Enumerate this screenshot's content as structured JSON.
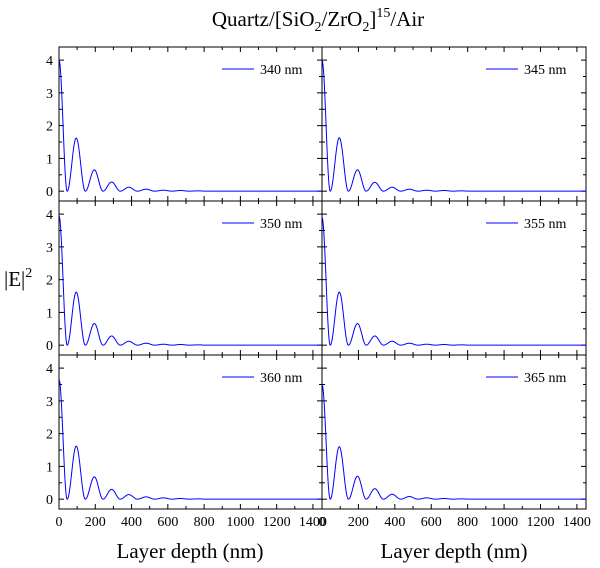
{
  "figure": {
    "title_main": "Quartz/[SiO",
    "title_sub1": "2",
    "title_mid": "/ZrO",
    "title_sub2": "2",
    "title_close": "]",
    "title_sup": "15",
    "title_end": "/Air",
    "ylabel_main": "|E|",
    "ylabel_sup": "2",
    "xlabel_left": "Layer depth (nm)",
    "xlabel_right": "Layer depth (nm)",
    "series_color": "#0000ff"
  },
  "chart_data": [
    {
      "type": "line",
      "panel": "top-left",
      "legend": "340 nm",
      "xlim": [
        0,
        1450
      ],
      "ylim": [
        -0.3,
        4.4
      ],
      "xticks": [
        0,
        200,
        400,
        600,
        800,
        1000,
        1200,
        1400
      ],
      "yticks": [
        0,
        1,
        2,
        3,
        4
      ],
      "first_peak": 4.0,
      "peaks": [
        {
          "x": 95,
          "y": 1.62
        },
        {
          "x": 195,
          "y": 0.65
        },
        {
          "x": 290,
          "y": 0.28
        },
        {
          "x": 385,
          "y": 0.12
        },
        {
          "x": 480,
          "y": 0.06
        },
        {
          "x": 575,
          "y": 0.03
        },
        {
          "x": 670,
          "y": 0.02
        },
        {
          "x": 765,
          "y": 0.01
        }
      ]
    },
    {
      "type": "line",
      "panel": "top-right",
      "legend": "345 nm",
      "xlim": [
        0,
        1450
      ],
      "ylim": [
        -0.3,
        4.4
      ],
      "xticks": [
        0,
        200,
        400,
        600,
        800,
        1000,
        1200,
        1400
      ],
      "yticks": [
        0,
        1,
        2,
        3,
        4
      ],
      "first_peak": 4.0,
      "peaks": [
        {
          "x": 95,
          "y": 1.63
        },
        {
          "x": 195,
          "y": 0.65
        },
        {
          "x": 290,
          "y": 0.27
        },
        {
          "x": 385,
          "y": 0.12
        },
        {
          "x": 480,
          "y": 0.06
        },
        {
          "x": 575,
          "y": 0.03
        },
        {
          "x": 670,
          "y": 0.02
        },
        {
          "x": 765,
          "y": 0.01
        }
      ]
    },
    {
      "type": "line",
      "panel": "middle-left",
      "legend": "350 nm",
      "xlim": [
        0,
        1450
      ],
      "ylim": [
        -0.3,
        4.4
      ],
      "xticks": [
        0,
        200,
        400,
        600,
        800,
        1000,
        1200,
        1400
      ],
      "yticks": [
        0,
        1,
        2,
        3,
        4
      ],
      "first_peak": 3.95,
      "peaks": [
        {
          "x": 95,
          "y": 1.62
        },
        {
          "x": 195,
          "y": 0.66
        },
        {
          "x": 290,
          "y": 0.28
        },
        {
          "x": 385,
          "y": 0.12
        },
        {
          "x": 480,
          "y": 0.06
        },
        {
          "x": 575,
          "y": 0.03
        },
        {
          "x": 670,
          "y": 0.02
        },
        {
          "x": 765,
          "y": 0.01
        }
      ]
    },
    {
      "type": "line",
      "panel": "middle-right",
      "legend": "355 nm",
      "xlim": [
        0,
        1450
      ],
      "ylim": [
        -0.3,
        4.4
      ],
      "xticks": [
        0,
        200,
        400,
        600,
        800,
        1000,
        1200,
        1400
      ],
      "yticks": [
        0,
        1,
        2,
        3,
        4
      ],
      "first_peak": 3.9,
      "peaks": [
        {
          "x": 95,
          "y": 1.62
        },
        {
          "x": 195,
          "y": 0.66
        },
        {
          "x": 290,
          "y": 0.28
        },
        {
          "x": 385,
          "y": 0.12
        },
        {
          "x": 480,
          "y": 0.06
        },
        {
          "x": 575,
          "y": 0.03
        },
        {
          "x": 670,
          "y": 0.02
        },
        {
          "x": 765,
          "y": 0.01
        }
      ]
    },
    {
      "type": "line",
      "panel": "bottom-left",
      "legend": "360 nm",
      "xlim": [
        0,
        1450
      ],
      "ylim": [
        -0.3,
        4.4
      ],
      "xticks": [
        0,
        200,
        400,
        600,
        800,
        1000,
        1200,
        1400
      ],
      "yticks": [
        0,
        1,
        2,
        3,
        4
      ],
      "first_peak": 3.65,
      "peaks": [
        {
          "x": 95,
          "y": 1.62
        },
        {
          "x": 195,
          "y": 0.68
        },
        {
          "x": 290,
          "y": 0.3
        },
        {
          "x": 385,
          "y": 0.14
        },
        {
          "x": 480,
          "y": 0.07
        },
        {
          "x": 575,
          "y": 0.04
        },
        {
          "x": 670,
          "y": 0.02
        },
        {
          "x": 765,
          "y": 0.01
        }
      ]
    },
    {
      "type": "line",
      "panel": "bottom-right",
      "legend": "365 nm",
      "xlim": [
        0,
        1450
      ],
      "ylim": [
        -0.3,
        4.4
      ],
      "xticks": [
        0,
        200,
        400,
        600,
        800,
        1000,
        1200,
        1400
      ],
      "yticks": [
        0,
        1,
        2,
        3,
        4
      ],
      "first_peak": 3.5,
      "peaks": [
        {
          "x": 95,
          "y": 1.6
        },
        {
          "x": 195,
          "y": 0.7
        },
        {
          "x": 290,
          "y": 0.32
        },
        {
          "x": 385,
          "y": 0.15
        },
        {
          "x": 480,
          "y": 0.08
        },
        {
          "x": 575,
          "y": 0.04
        },
        {
          "x": 670,
          "y": 0.02
        },
        {
          "x": 765,
          "y": 0.01
        }
      ]
    }
  ]
}
